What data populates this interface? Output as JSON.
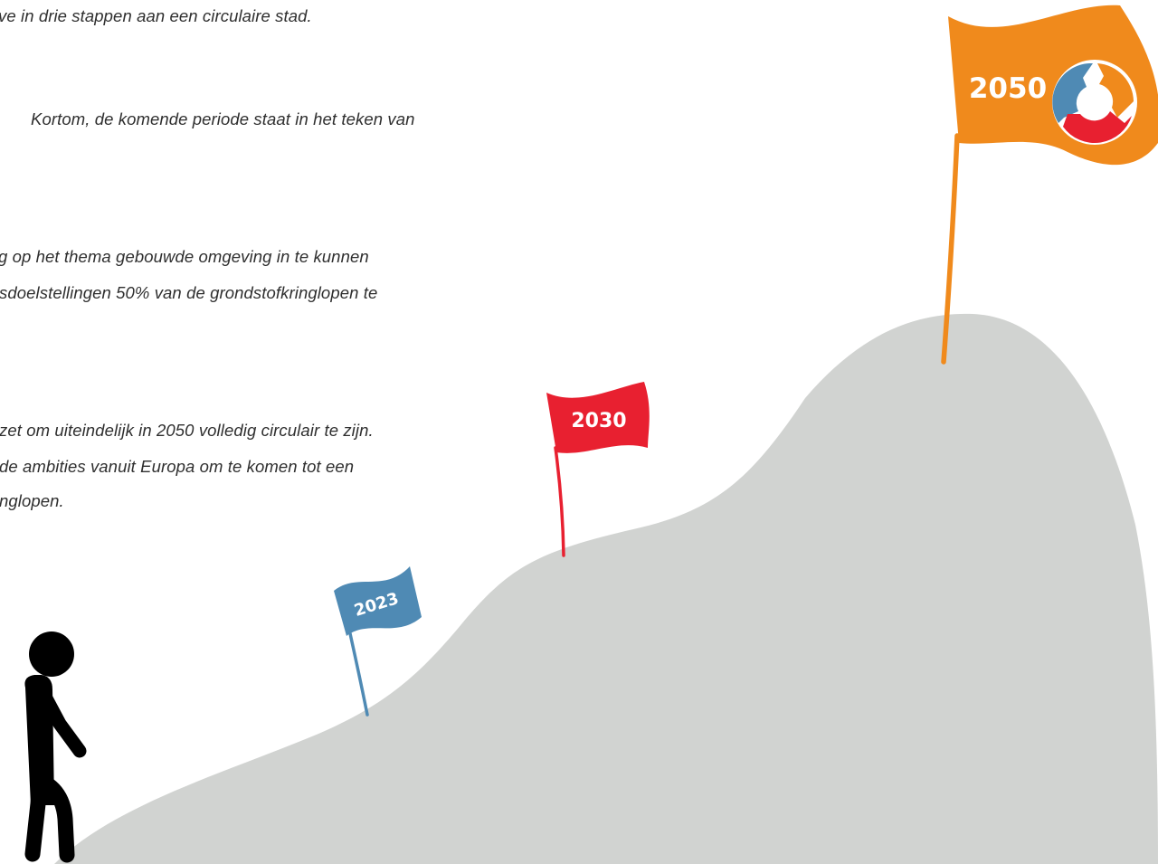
{
  "text_lines": [
    "ve in drie stappen  aan een circulaire stad.",
    "Kortom, de komende periode staat in het teken van",
    "g op het thema gebouwde omgeving in te kunnen",
    "sdoelstellingen  50% van de grondstofkringlopen te",
    "zet om uiteindelijk in 2050 volledig circulair te zijn.",
    "de ambities vanuit Europa  om te komen tot een",
    "nglopen."
  ],
  "flags": {
    "flag_2023": {
      "label": "2023",
      "color": "#4f8ab4"
    },
    "flag_2030": {
      "label": "2030",
      "color": "#e82030"
    },
    "flag_2050": {
      "label": "2050",
      "color": "#f08a1c"
    }
  },
  "circular_icon": {
    "colors": [
      "#4f8ab4",
      "#e82030",
      "#f08a1c"
    ]
  },
  "mountain": {
    "color": "#d1d3d1"
  },
  "hiker": {
    "color": "#000000"
  }
}
